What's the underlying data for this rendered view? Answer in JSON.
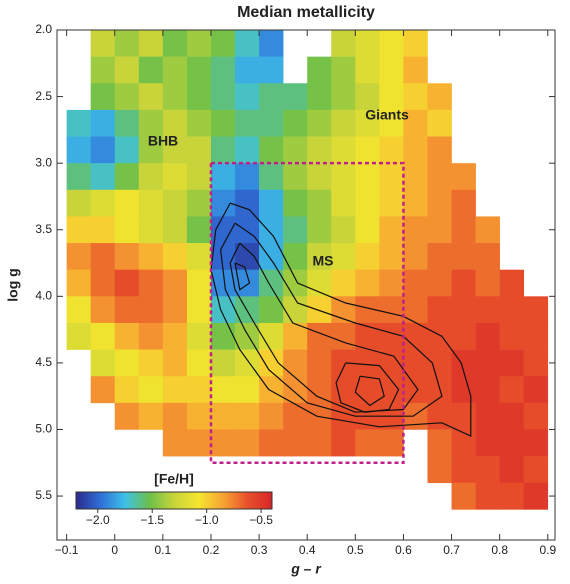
{
  "chart_data": {
    "type": "heatmap",
    "title": "Median metallicity",
    "x_label": "g – r",
    "y_label": "log g",
    "xlim": [
      -0.12,
      0.915
    ],
    "ylim": [
      2.0,
      5.83
    ],
    "xticks": [
      {
        "value": -0.1,
        "label": "−0.1"
      },
      0,
      0.1,
      0.2,
      0.3,
      0.4,
      0.5,
      0.6,
      0.7,
      0.8,
      0.9
    ],
    "yticks": [
      {
        "value": 2.0,
        "label": "2.0"
      },
      2.5,
      {
        "value": 3.0,
        "label": "3.0"
      },
      3.5,
      {
        "value": 4.0,
        "label": "4.0"
      },
      4.5,
      {
        "value": 5.0,
        "label": "5.0"
      },
      5.5
    ],
    "x_bins": [
      -0.1,
      -0.05,
      0,
      0.05,
      0.1,
      0.15,
      0.2,
      0.25,
      0.3,
      0.35,
      0.4,
      0.45,
      0.5,
      0.55,
      0.6,
      0.65,
      0.7,
      0.75,
      0.8,
      0.85,
      0.9
    ],
    "y_bins": [
      2.0,
      2.2,
      2.4,
      2.6,
      2.8,
      3.0,
      3.2,
      3.4,
      3.6,
      3.8,
      4.0,
      4.2,
      4.4,
      4.6,
      4.8,
      5.0,
      5.2,
      5.4,
      5.6
    ],
    "z": [
      [
        null,
        -1.3,
        -1.4,
        -1.3,
        -1.5,
        -1.4,
        -1.5,
        -1.7,
        -1.9,
        null,
        null,
        -1.3,
        -1.2,
        -1.1,
        -1.0,
        null,
        null,
        null,
        null,
        null
      ],
      [
        null,
        -1.4,
        -1.3,
        -1.5,
        -1.4,
        -1.5,
        -1.6,
        -1.8,
        -1.8,
        null,
        -1.5,
        -1.4,
        -1.2,
        -1.1,
        -0.9,
        null,
        null,
        null,
        null,
        null
      ],
      [
        null,
        -1.5,
        -1.4,
        -1.3,
        -1.4,
        -1.5,
        -1.6,
        -1.7,
        -1.6,
        -1.6,
        -1.5,
        -1.4,
        -1.3,
        -1.1,
        -1.0,
        -0.9,
        null,
        null,
        null,
        null
      ],
      [
        -1.7,
        -1.8,
        -1.6,
        -1.4,
        -1.3,
        -1.4,
        -1.5,
        -1.6,
        -1.6,
        -1.5,
        -1.4,
        -1.3,
        -1.2,
        -1.1,
        -0.9,
        -1.0,
        null,
        null,
        null,
        null
      ],
      [
        -1.8,
        -1.9,
        -1.7,
        -1.4,
        -1.3,
        -1.3,
        -1.6,
        -1.7,
        -1.5,
        -1.4,
        -1.3,
        -1.2,
        -1.1,
        -1.0,
        -0.9,
        -0.8,
        null,
        null,
        null,
        null
      ],
      [
        -1.6,
        -1.7,
        -1.5,
        -1.3,
        -1.2,
        -1.3,
        -1.8,
        -1.9,
        -1.6,
        -1.4,
        -1.3,
        -1.2,
        -1.1,
        -1.0,
        -0.9,
        -0.8,
        -0.8,
        null,
        null,
        null
      ],
      [
        -1.3,
        -1.2,
        -1.1,
        -1.2,
        -1.3,
        -1.4,
        -1.9,
        -2.0,
        -1.8,
        -1.5,
        -1.4,
        -1.2,
        -1.1,
        -1.0,
        -0.9,
        -0.8,
        -0.7,
        null,
        null,
        null
      ],
      [
        -1.0,
        -1.0,
        -1.1,
        -1.2,
        -1.3,
        -1.5,
        -2.0,
        -2.0,
        -1.8,
        -1.6,
        -1.4,
        -1.3,
        -1.1,
        -0.9,
        -0.8,
        -0.8,
        -0.7,
        -0.8,
        null,
        null
      ],
      [
        -0.8,
        -0.7,
        -0.8,
        -0.9,
        -1.0,
        -1.2,
        -2.0,
        -2.1,
        -1.8,
        -1.5,
        -1.3,
        -1.2,
        -1.0,
        -0.9,
        -0.8,
        -0.7,
        -0.7,
        -0.7,
        null,
        null
      ],
      [
        -0.9,
        -0.7,
        -0.6,
        -0.7,
        -0.8,
        -1.1,
        -1.9,
        -1.9,
        -1.6,
        -1.4,
        -1.2,
        -1.0,
        -0.9,
        -0.8,
        -0.7,
        -0.7,
        -0.6,
        -0.7,
        -0.6,
        null
      ],
      [
        -1.1,
        -0.8,
        -0.7,
        -0.7,
        -0.8,
        -1.1,
        -1.7,
        -1.6,
        -1.5,
        -1.3,
        -1.0,
        -0.8,
        -0.7,
        -0.7,
        -0.7,
        -0.6,
        -0.6,
        -0.6,
        -0.6,
        -0.6
      ],
      [
        -1.2,
        -1.1,
        -0.9,
        -0.8,
        -0.9,
        -1.2,
        -1.5,
        -1.4,
        -1.2,
        -0.9,
        -0.7,
        -0.7,
        -0.6,
        -0.6,
        -0.6,
        -0.6,
        -0.6,
        -0.5,
        -0.6,
        -0.6
      ],
      [
        null,
        -1.2,
        -1.1,
        -1.0,
        -0.9,
        -1.1,
        -1.3,
        -1.2,
        -1.0,
        -0.8,
        -0.7,
        -0.6,
        -0.6,
        -0.6,
        -0.6,
        -0.6,
        -0.5,
        -0.5,
        -0.5,
        -0.6
      ],
      [
        null,
        -0.8,
        -1.0,
        -1.1,
        -1.0,
        -1.0,
        -1.1,
        -1.1,
        -0.9,
        -0.8,
        -0.7,
        -0.6,
        -0.6,
        -0.6,
        -0.6,
        -0.6,
        -0.5,
        -0.5,
        -0.6,
        -0.5
      ],
      [
        null,
        null,
        -0.8,
        -0.9,
        -0.8,
        -0.9,
        -0.9,
        -0.9,
        -0.8,
        -0.7,
        -0.7,
        -0.6,
        -0.6,
        -0.6,
        -0.7,
        -0.6,
        -0.6,
        -0.5,
        -0.5,
        -0.6
      ],
      [
        null,
        null,
        null,
        null,
        -0.8,
        -0.8,
        -0.8,
        -0.8,
        -0.7,
        -0.7,
        -0.7,
        -0.6,
        -0.7,
        -0.7,
        null,
        -0.7,
        -0.6,
        -0.5,
        -0.5,
        -0.5
      ],
      [
        null,
        null,
        null,
        null,
        null,
        null,
        null,
        null,
        null,
        null,
        null,
        null,
        null,
        null,
        null,
        -0.7,
        -0.6,
        -0.6,
        -0.5,
        -0.6
      ],
      [
        null,
        null,
        null,
        null,
        null,
        null,
        null,
        null,
        null,
        null,
        null,
        null,
        null,
        null,
        null,
        null,
        -0.7,
        -0.6,
        -0.6,
        -0.5
      ]
    ],
    "colormap": [
      "#2b2b8c",
      "#2f6fd6",
      "#3ec1e8",
      "#6cc04a",
      "#c8d43a",
      "#f5e52f",
      "#f7a433",
      "#e8512a",
      "#d7262a"
    ],
    "colorbar": {
      "label": "[Fe/H]",
      "clim": [
        -2.2,
        -0.4
      ],
      "ticks": [
        {
          "value": -2.0,
          "label": "−2.0"
        },
        {
          "value": -1.5,
          "label": "−1.5"
        },
        {
          "value": -1.0,
          "label": "−1.0"
        },
        {
          "value": -0.5,
          "label": "−0.5"
        }
      ]
    },
    "annotations": [
      "BHB",
      "Giants",
      "MS"
    ],
    "box": {
      "x": [
        0.2,
        0.6
      ],
      "y": [
        3.0,
        5.25
      ],
      "color": "#c0208a"
    },
    "contours": [
      {
        "x": [
          0.24,
          0.28,
          0.33,
          0.38,
          0.48,
          0.6,
          0.68,
          0.72,
          0.74,
          0.74,
          0.68,
          0.55,
          0.42,
          0.32,
          0.26,
          0.22,
          0.2,
          0.21,
          0.24
        ],
        "y": [
          3.3,
          3.35,
          3.55,
          3.9,
          4.05,
          4.15,
          4.3,
          4.5,
          4.75,
          5.05,
          4.95,
          4.98,
          4.9,
          4.7,
          4.4,
          4.1,
          3.8,
          3.5,
          3.3
        ]
      },
      {
        "x": [
          0.25,
          0.29,
          0.33,
          0.38,
          0.5,
          0.6,
          0.66,
          0.68,
          0.62,
          0.5,
          0.4,
          0.32,
          0.27,
          0.23,
          0.22,
          0.25
        ],
        "y": [
          3.45,
          3.55,
          3.75,
          4.05,
          4.2,
          4.3,
          4.5,
          4.75,
          4.9,
          4.9,
          4.8,
          4.55,
          4.25,
          3.95,
          3.65,
          3.45
        ]
      },
      {
        "x": [
          0.26,
          0.29,
          0.32,
          0.37,
          0.48,
          0.58,
          0.63,
          0.6,
          0.5,
          0.42,
          0.34,
          0.29,
          0.25,
          0.24,
          0.26
        ],
        "y": [
          3.6,
          3.7,
          3.9,
          4.2,
          4.35,
          4.45,
          4.7,
          4.85,
          4.87,
          4.75,
          4.5,
          4.2,
          3.95,
          3.75,
          3.6
        ]
      },
      {
        "x": [
          0.48,
          0.55,
          0.59,
          0.57,
          0.52,
          0.47,
          0.46,
          0.48
        ],
        "y": [
          4.5,
          4.52,
          4.7,
          4.85,
          4.87,
          4.8,
          4.65,
          4.5
        ]
      },
      {
        "x": [
          0.51,
          0.55,
          0.56,
          0.53,
          0.5,
          0.51
        ],
        "y": [
          4.6,
          4.62,
          4.75,
          4.82,
          4.72,
          4.6
        ]
      },
      {
        "x": [
          0.25,
          0.27,
          0.28,
          0.26,
          0.25
        ],
        "y": [
          3.75,
          3.78,
          3.9,
          3.95,
          3.75
        ]
      }
    ]
  }
}
